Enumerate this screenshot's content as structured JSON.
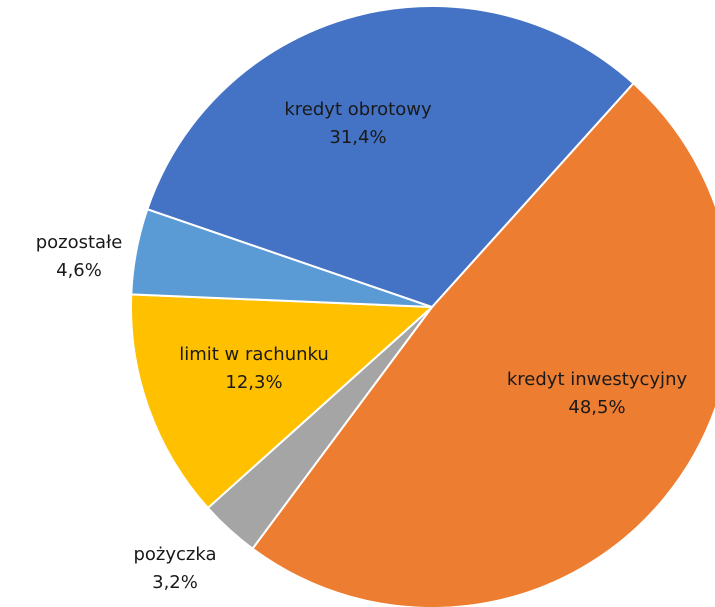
{
  "chart_data": {
    "type": "pie",
    "categories": [
      "kredyt inwestycyjny",
      "pożyczka",
      "limit w rachunku",
      "pozostałe",
      "kredyt obrotowy"
    ],
    "values": [
      48.5,
      3.2,
      12.3,
      4.6,
      31.4
    ],
    "value_labels": [
      "48,5%",
      "3,2%",
      "12,3%",
      "4,6%",
      "31,4%"
    ],
    "colors": [
      "#ED7D31",
      "#A5A5A5",
      "#FFC000",
      "#5B9BD5",
      "#4472C4"
    ]
  }
}
